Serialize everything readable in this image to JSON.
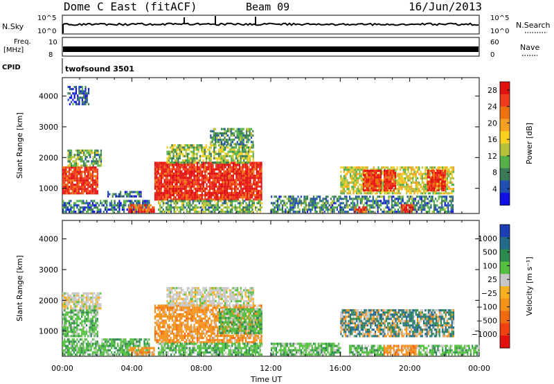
{
  "header": {
    "title": "Dome C East (fitACF)",
    "beam": "Beam 09",
    "date": "16/Jun/2013"
  },
  "strips": {
    "nsky_label": "N.Sky",
    "nsky_ticks": [
      "10^5",
      "10^0"
    ],
    "nsearch_label": "N.Search",
    "nsearch_ticks_right": [
      "10^5",
      "10^0"
    ],
    "freq_label": "Freq.",
    "freq_unit": "[MHz]",
    "freq_ticks": [
      "10",
      "8"
    ],
    "nave_label": "Nave",
    "nave_ticks": [
      "60",
      "0"
    ],
    "cpid_label": "CPID",
    "cpid_value": "twofsound 3501"
  },
  "colors": {
    "power_scale": [
      "#1010e0",
      "#1f4fb0",
      "#3a7a55",
      "#55b04a",
      "#b8c238",
      "#f7d020",
      "#f5a020",
      "#f07010",
      "#ef3b1a",
      "#e31010"
    ],
    "velocity_scale": [
      "#e31010",
      "#ef4010",
      "#f26a10",
      "#f5921a",
      "#f7b020",
      "#c8c8c8",
      "#55c040",
      "#2e8a50",
      "#246b8a",
      "#1c3fb5"
    ]
  },
  "chart_data": [
    {
      "type": "heatmap",
      "name": "power-panel",
      "xlabel": "",
      "ylabel": "Slant Range [km]",
      "x_ticks": [
        "00:00",
        "04:00",
        "08:00",
        "12:00",
        "16:00",
        "20:00",
        "00:00"
      ],
      "y_ticks": [
        "1000",
        "2000",
        "3000",
        "4000"
      ],
      "xlim_hours": [
        0,
        24
      ],
      "ylim_km": [
        180,
        4600
      ],
      "colorbar": {
        "label": "Power [dB]",
        "ticks": [
          "4",
          "8",
          "12",
          "16",
          "20",
          "24",
          "28"
        ],
        "range": [
          0,
          30
        ]
      },
      "regions": [
        {
          "t": [
            0.0,
            2.0
          ],
          "r": [
            800,
            1700
          ],
          "level": 0.88
        },
        {
          "t": [
            0.3,
            2.2
          ],
          "r": [
            1700,
            2200
          ],
          "level": 0.35
        },
        {
          "t": [
            0.0,
            5.0
          ],
          "r": [
            200,
            600
          ],
          "level": 0.22
        },
        {
          "t": [
            3.8,
            5.3
          ],
          "r": [
            200,
            450
          ],
          "level": 0.85
        },
        {
          "t": [
            2.5,
            4.5
          ],
          "r": [
            700,
            900
          ],
          "level": 0.2
        },
        {
          "t": [
            5.3,
            11.5
          ],
          "r": [
            600,
            1800
          ],
          "level": 0.92
        },
        {
          "t": [
            6.0,
            11.0
          ],
          "r": [
            1800,
            2400
          ],
          "level": 0.4
        },
        {
          "t": [
            8.5,
            11.0
          ],
          "r": [
            2400,
            2900
          ],
          "level": 0.3
        },
        {
          "t": [
            5.5,
            11.5
          ],
          "r": [
            200,
            600
          ],
          "level": 0.35
        },
        {
          "t": [
            12.0,
            22.5
          ],
          "r": [
            200,
            700
          ],
          "level": 0.25
        },
        {
          "t": [
            16.0,
            22.5
          ],
          "r": [
            800,
            1700
          ],
          "level": 0.5
        },
        {
          "t": [
            17.3,
            18.3
          ],
          "r": [
            900,
            1600
          ],
          "level": 0.9
        },
        {
          "t": [
            18.5,
            19.2
          ],
          "r": [
            900,
            1600
          ],
          "level": 0.9
        },
        {
          "t": [
            21.0,
            22.0
          ],
          "r": [
            900,
            1600
          ],
          "level": 0.9
        },
        {
          "t": [
            16.8,
            17.5
          ],
          "r": [
            200,
            400
          ],
          "level": 0.85
        },
        {
          "t": [
            19.5,
            20.2
          ],
          "r": [
            200,
            450
          ],
          "level": 0.85
        },
        {
          "t": [
            0.3,
            1.5
          ],
          "r": [
            3700,
            4300
          ],
          "level": 0.15
        }
      ]
    },
    {
      "type": "heatmap",
      "name": "velocity-panel",
      "xlabel": "Time UT",
      "ylabel": "Slant Range [km]",
      "x_ticks": [
        "00:00",
        "04:00",
        "08:00",
        "12:00",
        "16:00",
        "20:00",
        "00:00"
      ],
      "y_ticks": [
        "1000",
        "2000",
        "3000",
        "4000"
      ],
      "xlim_hours": [
        0,
        24
      ],
      "ylim_km": [
        180,
        4600
      ],
      "colorbar": {
        "label": "Velocity [m s⁻¹]",
        "ticks": [
          "1000",
          "500",
          "100",
          "25",
          "−25",
          "−100",
          "−500",
          "−1000"
        ],
        "range": [
          -1000,
          1000
        ]
      },
      "regions": [
        {
          "t": [
            0.0,
            2.0
          ],
          "r": [
            800,
            1700
          ],
          "cls": "green"
        },
        {
          "t": [
            0.0,
            2.2
          ],
          "r": [
            1700,
            2200
          ],
          "cls": "grey"
        },
        {
          "t": [
            0.0,
            5.0
          ],
          "r": [
            200,
            700
          ],
          "cls": "green"
        },
        {
          "t": [
            3.8,
            5.3
          ],
          "r": [
            200,
            450
          ],
          "cls": "orange"
        },
        {
          "t": [
            5.3,
            11.5
          ],
          "r": [
            600,
            1800
          ],
          "cls": "orange"
        },
        {
          "t": [
            6.0,
            11.0
          ],
          "r": [
            1800,
            2400
          ],
          "cls": "grey"
        },
        {
          "t": [
            9.0,
            11.5
          ],
          "r": [
            900,
            1700
          ],
          "cls": "green"
        },
        {
          "t": [
            5.5,
            11.5
          ],
          "r": [
            200,
            600
          ],
          "cls": "green"
        },
        {
          "t": [
            12.0,
            16.0
          ],
          "r": [
            200,
            600
          ],
          "cls": "green"
        },
        {
          "t": [
            16.0,
            22.5
          ],
          "r": [
            800,
            1700
          ],
          "cls": "mixed"
        },
        {
          "t": [
            16.5,
            18.5
          ],
          "r": [
            200,
            500
          ],
          "cls": "green"
        },
        {
          "t": [
            18.5,
            20.5
          ],
          "r": [
            200,
            500
          ],
          "cls": "orange"
        },
        {
          "t": [
            20.5,
            24.0
          ],
          "r": [
            200,
            500
          ],
          "cls": "green"
        }
      ]
    }
  ]
}
